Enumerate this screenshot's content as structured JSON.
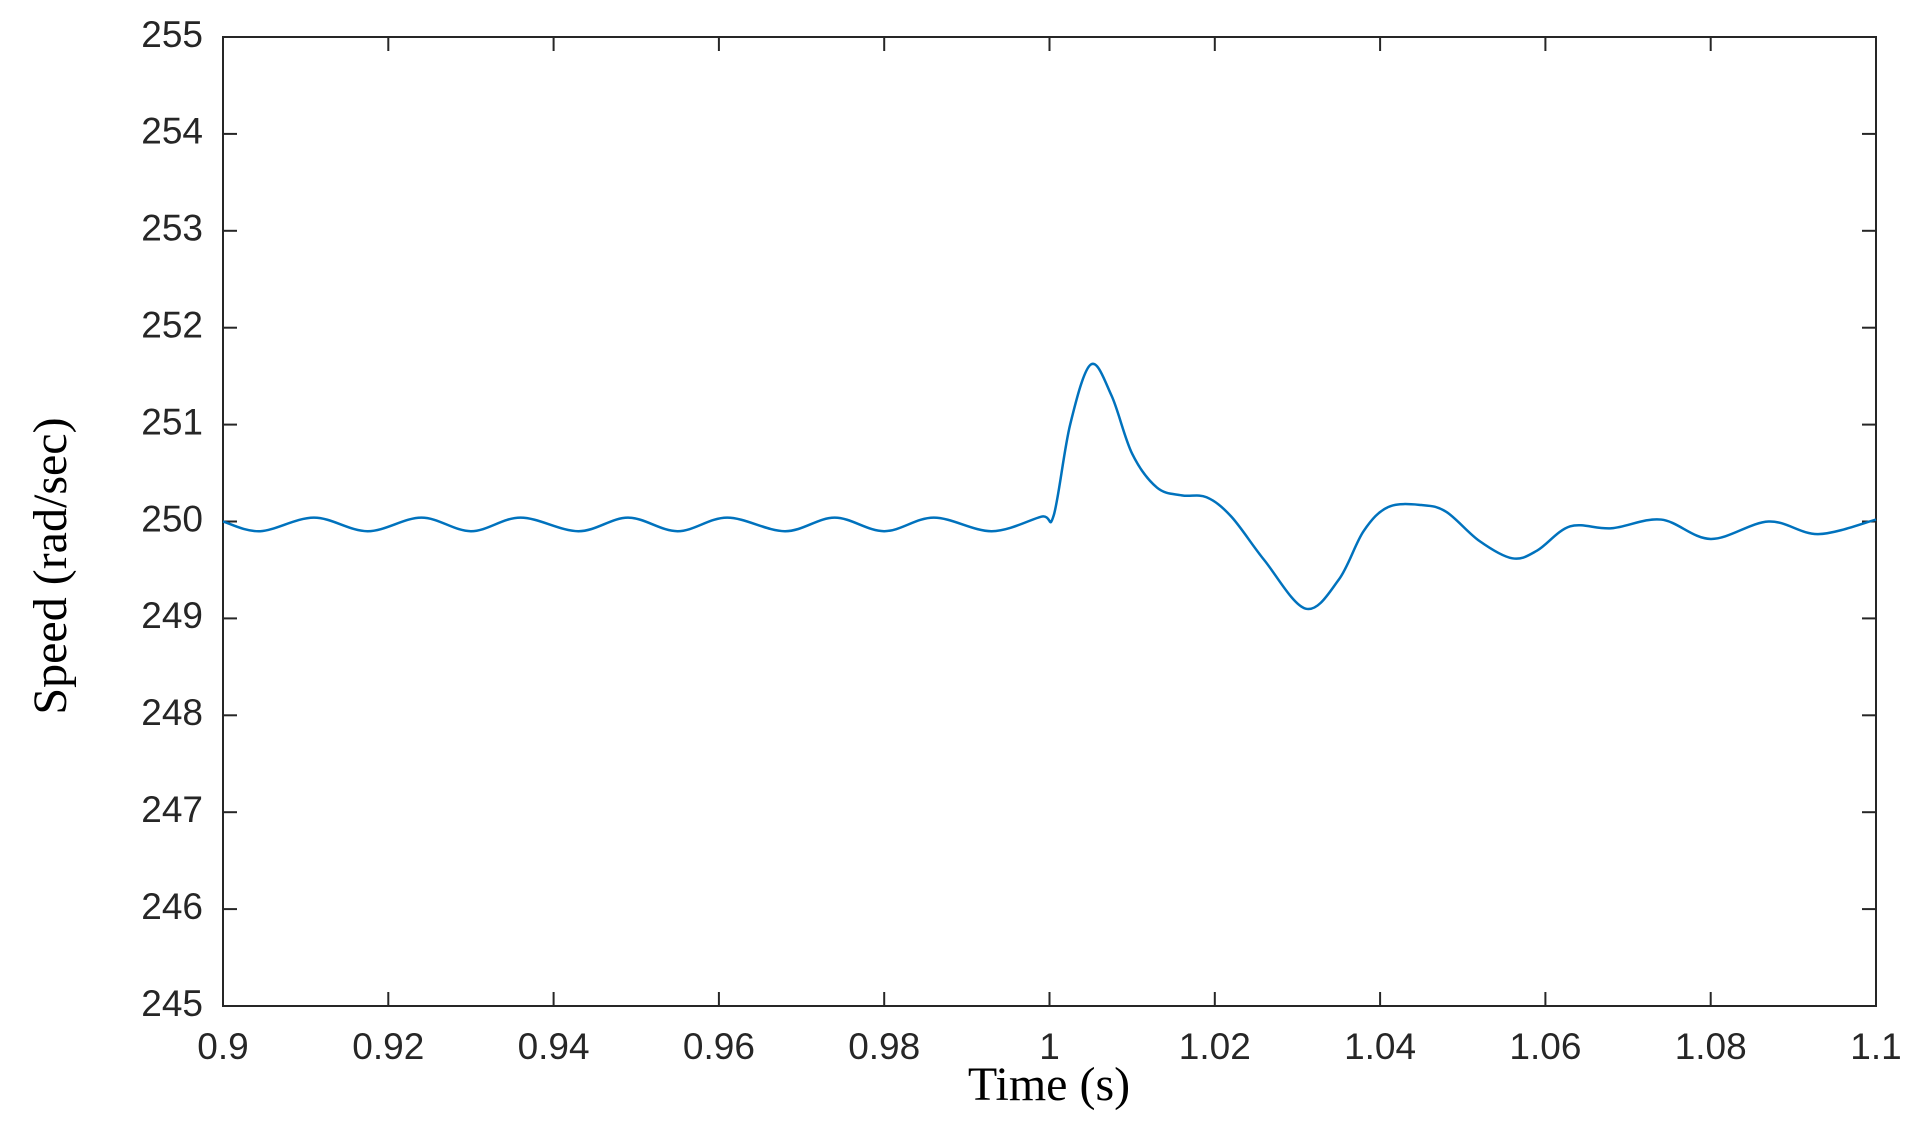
{
  "chart_data": {
    "type": "line",
    "xlabel": "Time (s)",
    "ylabel": "Speed (rad/sec)",
    "xlim": [
      0.9,
      1.1
    ],
    "ylim": [
      245,
      255
    ],
    "xticks": [
      0.9,
      0.92,
      0.94,
      0.96,
      0.98,
      1,
      1.02,
      1.04,
      1.06,
      1.08,
      1.1
    ],
    "yticks": [
      245,
      246,
      247,
      248,
      249,
      250,
      251,
      252,
      253,
      254,
      255
    ],
    "grid": false,
    "series": [
      {
        "color": "#0072bd",
        "x": [
          0.9,
          0.9045,
          0.911,
          0.9175,
          0.924,
          0.93,
          0.936,
          0.943,
          0.949,
          0.955,
          0.961,
          0.968,
          0.974,
          0.98,
          0.986,
          0.993,
          0.999,
          1.0005,
          1.0025,
          1.005,
          1.0075,
          1.01,
          1.013,
          1.016,
          1.019,
          1.022,
          1.026,
          1.031,
          1.035,
          1.038,
          1.041,
          1.045,
          1.048,
          1.052,
          1.056,
          1.059,
          1.063,
          1.068,
          1.074,
          1.08,
          1.087,
          1.093,
          1.1
        ],
        "values": [
          250.0,
          249.9,
          250.04,
          249.9,
          250.04,
          249.9,
          250.04,
          249.9,
          250.04,
          249.9,
          250.04,
          249.9,
          250.04,
          249.9,
          250.04,
          249.9,
          250.05,
          250.06,
          251.0,
          251.62,
          251.3,
          250.7,
          250.35,
          250.27,
          250.25,
          250.05,
          249.6,
          249.1,
          249.4,
          249.9,
          250.15,
          250.17,
          250.1,
          249.8,
          249.62,
          249.7,
          249.95,
          249.93,
          250.02,
          249.82,
          250.0,
          249.87,
          250.02
        ]
      }
    ]
  }
}
